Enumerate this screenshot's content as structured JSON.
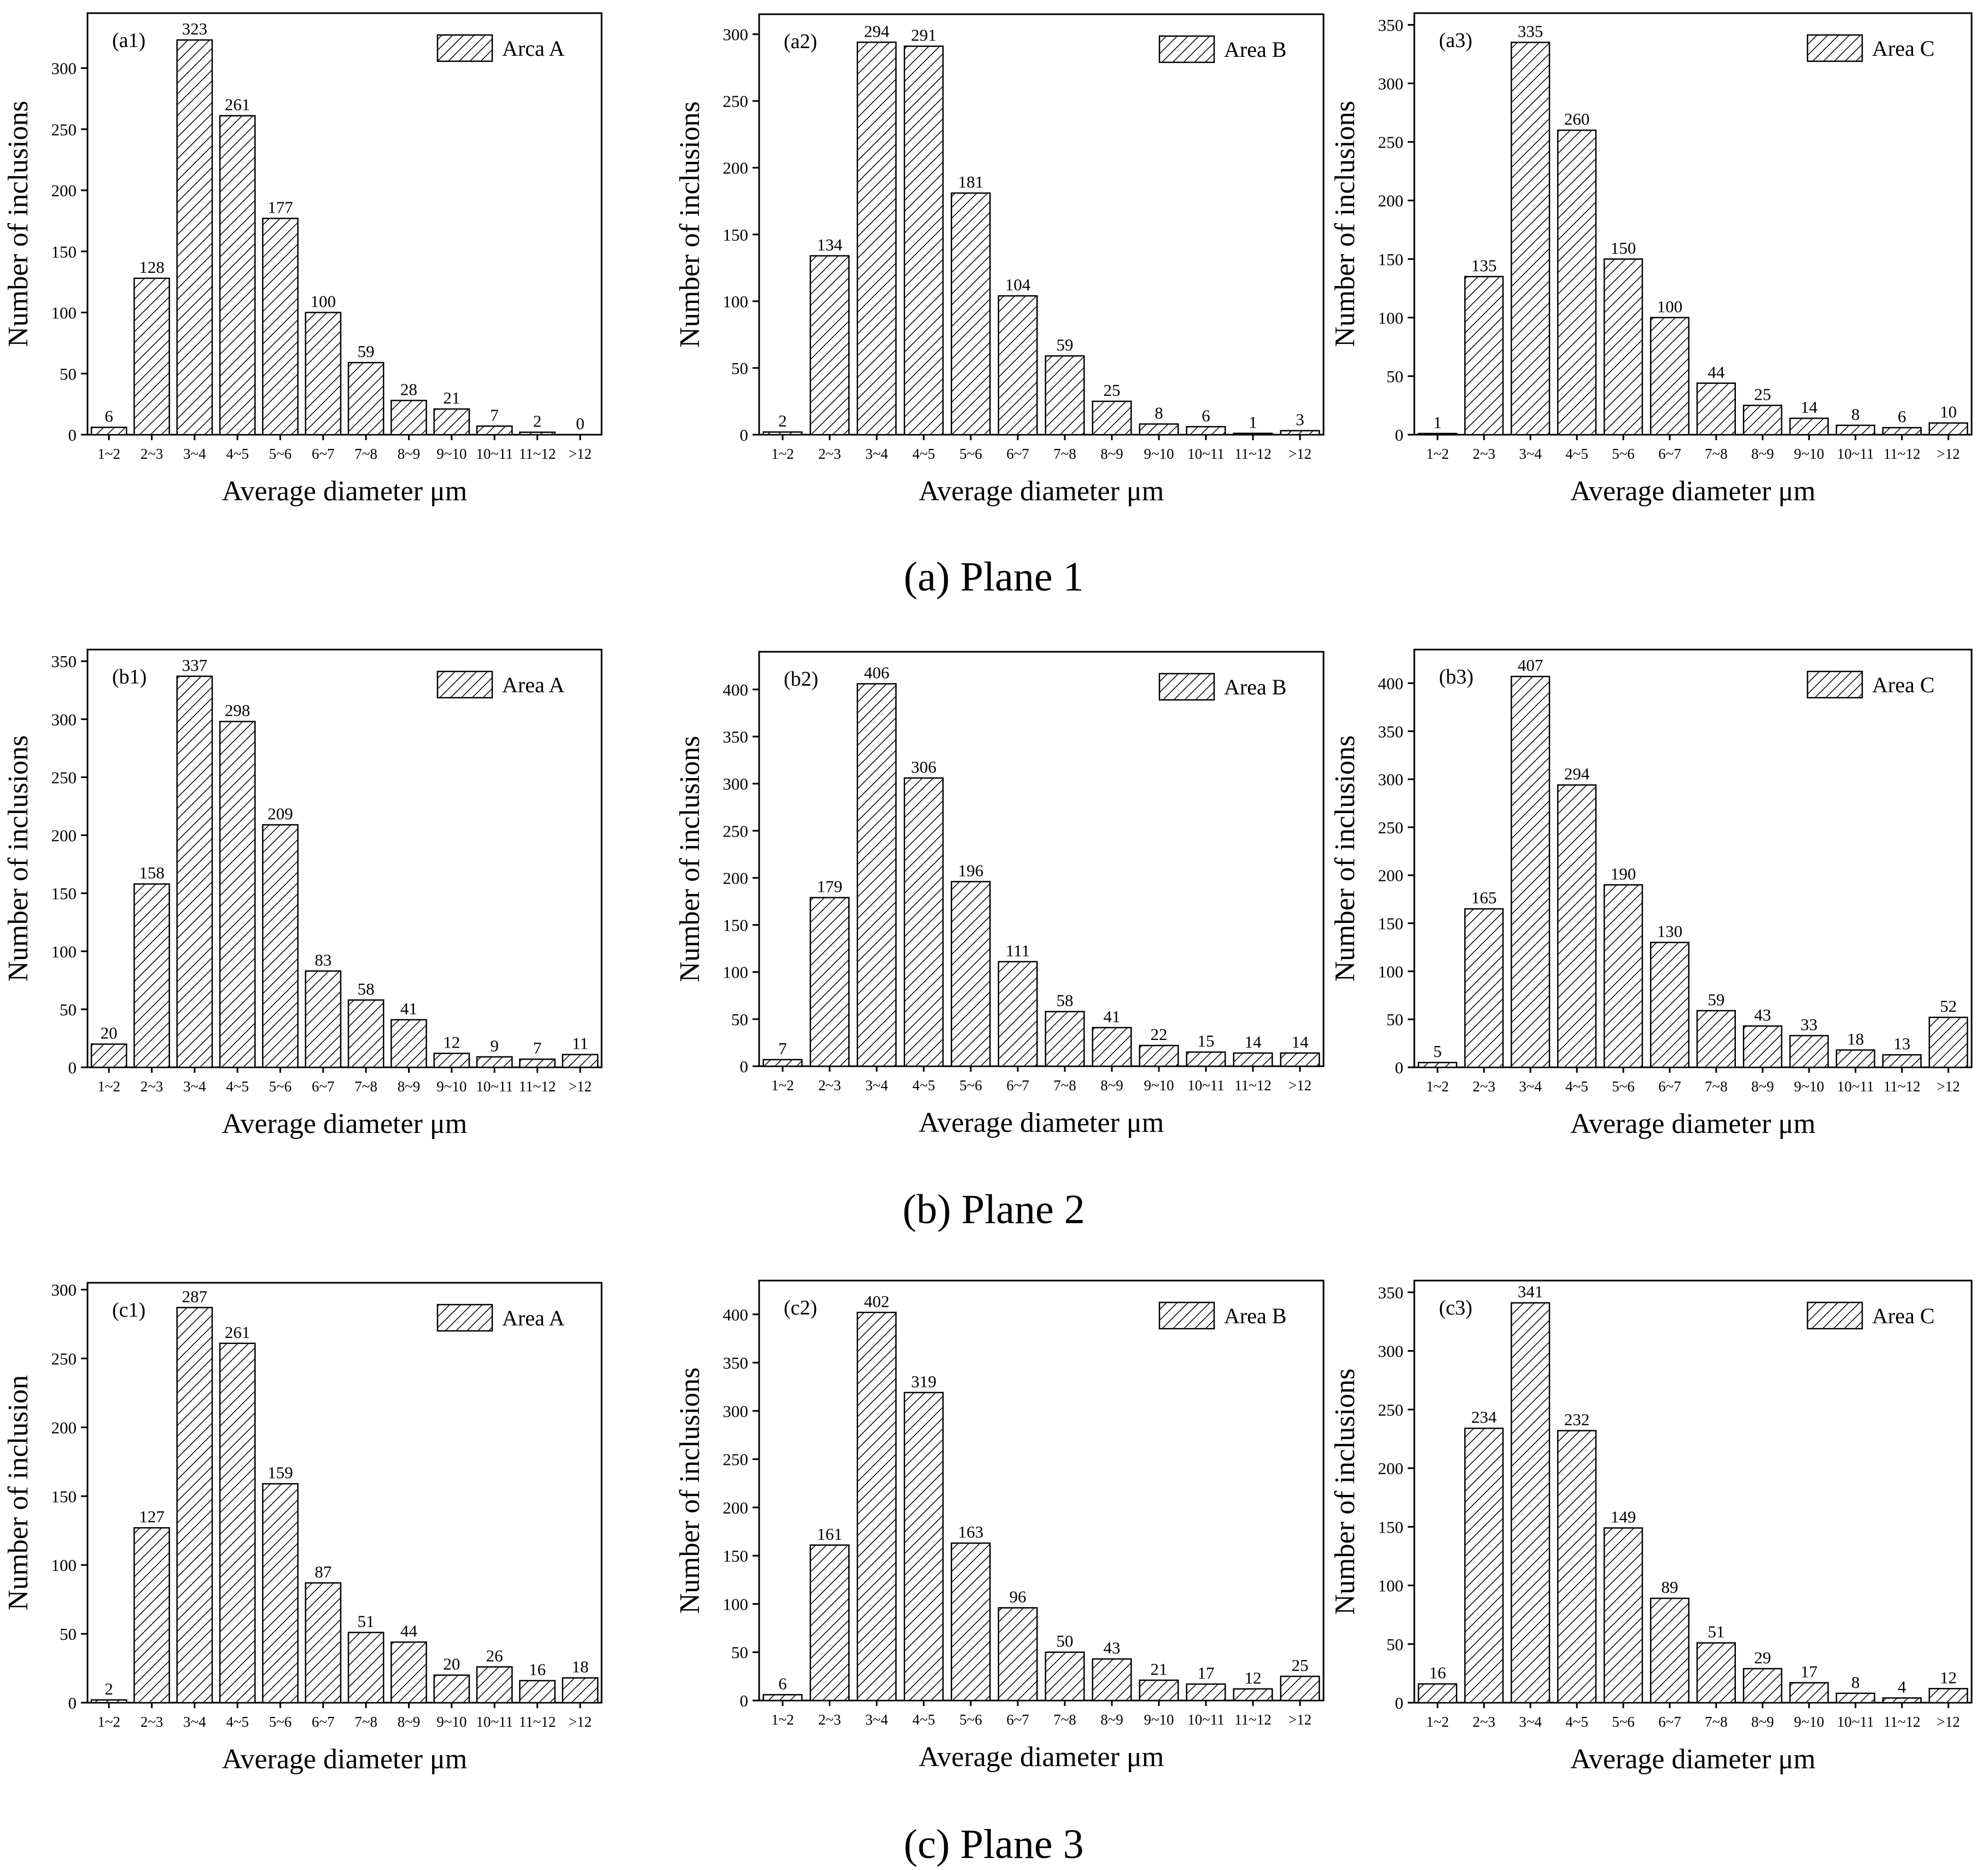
{
  "chart_data": [
    {
      "panel": "a1",
      "legend": "Arca A",
      "xlabel": "Average diameter  μm",
      "ylabel": "Number of inclusions",
      "ylim": [
        0,
        345
      ],
      "yticks": [
        0,
        50,
        100,
        150,
        200,
        250,
        300
      ],
      "type": "bar",
      "categories": [
        "1~2",
        "2~3",
        "3~4",
        "4~5",
        "5~6",
        "6~7",
        "7~8",
        "8~9",
        "9~10",
        "10~11",
        "11~12",
        ">12"
      ],
      "values": [
        6,
        128,
        323,
        261,
        177,
        100,
        59,
        28,
        21,
        7,
        2,
        0
      ]
    },
    {
      "panel": "a2",
      "legend": "Area B",
      "xlabel": "Average diameter μm",
      "ylabel": "Number of inclusions",
      "ylim": [
        0,
        315
      ],
      "yticks": [
        0,
        50,
        100,
        150,
        200,
        250,
        300
      ],
      "type": "bar",
      "categories": [
        "1~2",
        "2~3",
        "3~4",
        "4~5",
        "5~6",
        "6~7",
        "7~8",
        "8~9",
        "9~10",
        "10~11",
        "11~12",
        ">12"
      ],
      "values": [
        2,
        134,
        294,
        291,
        181,
        104,
        59,
        25,
        8,
        6,
        1,
        3
      ]
    },
    {
      "panel": "a3",
      "legend": "Area C",
      "xlabel": "Average diameter μm",
      "ylabel": "Number of inclusions",
      "ylim": [
        0,
        360
      ],
      "yticks": [
        0,
        50,
        100,
        150,
        200,
        250,
        300,
        350
      ],
      "type": "bar",
      "categories": [
        "1~2",
        "2~3",
        "3~4",
        "4~5",
        "5~6",
        "6~7",
        "7~8",
        "8~9",
        "9~10",
        "10~11",
        "11~12",
        ">12"
      ],
      "values": [
        1,
        135,
        335,
        260,
        150,
        100,
        44,
        25,
        14,
        8,
        6,
        10
      ]
    },
    {
      "panel": "b1",
      "legend": "Area A",
      "xlabel": "Average diameter μm",
      "ylabel": "Number of inclusions",
      "ylim": [
        0,
        360
      ],
      "yticks": [
        0,
        50,
        100,
        150,
        200,
        250,
        300,
        350
      ],
      "type": "bar",
      "categories": [
        "1~2",
        "2~3",
        "3~4",
        "4~5",
        "5~6",
        "6~7",
        "7~8",
        "8~9",
        "9~10",
        "10~11",
        "11~12",
        ">12"
      ],
      "values": [
        20,
        158,
        337,
        298,
        209,
        83,
        58,
        41,
        12,
        9,
        7,
        11
      ]
    },
    {
      "panel": "b2",
      "legend": "Area B",
      "xlabel": "Average diameter μm",
      "ylabel": "Number of inclusions",
      "ylim": [
        0,
        440
      ],
      "yticks": [
        0,
        50,
        100,
        150,
        200,
        250,
        300,
        350,
        400
      ],
      "type": "bar",
      "categories": [
        "1~2",
        "2~3",
        "3~4",
        "4~5",
        "5~6",
        "6~7",
        "7~8",
        "8~9",
        "9~10",
        "10~11",
        "11~12",
        ">12"
      ],
      "values": [
        7,
        179,
        406,
        306,
        196,
        111,
        58,
        41,
        22,
        15,
        14,
        14
      ]
    },
    {
      "panel": "b3",
      "legend": "Area C",
      "xlabel": "Average diameter μm",
      "ylabel": "Number of inclusions",
      "ylim": [
        0,
        435
      ],
      "yticks": [
        0,
        50,
        100,
        150,
        200,
        250,
        300,
        350,
        400
      ],
      "type": "bar",
      "categories": [
        "1~2",
        "2~3",
        "3~4",
        "4~5",
        "5~6",
        "6~7",
        "7~8",
        "8~9",
        "9~10",
        "10~11",
        "11~12",
        ">12"
      ],
      "values": [
        5,
        165,
        407,
        294,
        190,
        130,
        59,
        43,
        33,
        18,
        13,
        52
      ]
    },
    {
      "panel": "c1",
      "legend": "Area A",
      "xlabel": "Average diameter μm",
      "ylabel": "Number of inclusion",
      "ylim": [
        0,
        305
      ],
      "yticks": [
        0,
        50,
        100,
        150,
        200,
        250,
        300
      ],
      "type": "bar",
      "categories": [
        "1~2",
        "2~3",
        "3~4",
        "4~5",
        "5~6",
        "6~7",
        "7~8",
        "8~9",
        "9~10",
        "10~11",
        "11~12",
        ">12"
      ],
      "values": [
        2,
        127,
        287,
        261,
        159,
        87,
        51,
        44,
        20,
        26,
        16,
        18
      ]
    },
    {
      "panel": "c2",
      "legend": "Area B",
      "xlabel": "Average diameter μm",
      "ylabel": "Number of inclusions",
      "ylim": [
        0,
        435
      ],
      "yticks": [
        0,
        50,
        100,
        150,
        200,
        250,
        300,
        350,
        400
      ],
      "type": "bar",
      "categories": [
        "1~2",
        "2~3",
        "3~4",
        "4~5",
        "5~6",
        "6~7",
        "7~8",
        "8~9",
        "9~10",
        "10~11",
        "11~12",
        ">12"
      ],
      "values": [
        6,
        161,
        402,
        319,
        163,
        96,
        50,
        43,
        21,
        17,
        12,
        25
      ]
    },
    {
      "panel": "c3",
      "legend": "Area C",
      "xlabel": "Average diameter μm",
      "ylabel": "Number of inclusions",
      "ylim": [
        0,
        360
      ],
      "yticks": [
        0,
        50,
        100,
        150,
        200,
        250,
        300,
        350
      ],
      "type": "bar",
      "categories": [
        "1~2",
        "2~3",
        "3~4",
        "4~5",
        "5~6",
        "6~7",
        "7~8",
        "8~9",
        "9~10",
        "10~11",
        "11~12",
        ">12"
      ],
      "values": [
        16,
        234,
        341,
        232,
        149,
        89,
        51,
        29,
        17,
        8,
        4,
        12
      ]
    }
  ],
  "captions": [
    "(a) Plane 1",
    "(b) Plane 2",
    "(c) Plane 3"
  ],
  "colors": {
    "bar_fill": "#ffffff",
    "hatch": "#000000",
    "axis": "#000000"
  }
}
